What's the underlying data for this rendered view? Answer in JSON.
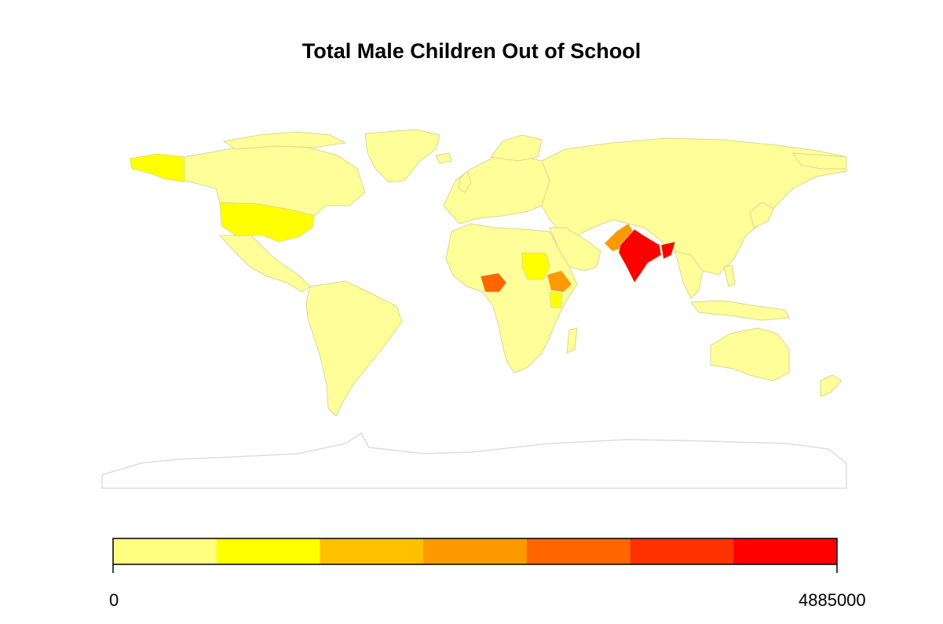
{
  "title": "Total Male Children Out of School",
  "legend": {
    "min_label": "0",
    "max_label": "4885000",
    "colors": [
      "#ffff80",
      "#ffff00",
      "#ffc000",
      "#ff9900",
      "#ff6600",
      "#ff3300",
      "#ff0000"
    ]
  },
  "colors": {
    "base_land": "#ffff99",
    "border": "#d8d890",
    "antarctica": "#ffffff",
    "antarctica_border": "#dddddd",
    "legend_border": "#000000"
  },
  "highlighted_regions": [
    {
      "region": "india",
      "color": "#ff0000"
    },
    {
      "region": "myanmar-part",
      "color": "#ff0000"
    },
    {
      "region": "pakistan",
      "color": "#ff9900"
    },
    {
      "region": "nigeria",
      "color": "#ff6600"
    },
    {
      "region": "ethiopia",
      "color": "#ff9900"
    },
    {
      "region": "sudan",
      "color": "#ffff00"
    },
    {
      "region": "kenya",
      "color": "#ffff00"
    },
    {
      "region": "usa",
      "color": "#ffff00"
    },
    {
      "region": "alaska",
      "color": "#ffff00"
    }
  ]
}
